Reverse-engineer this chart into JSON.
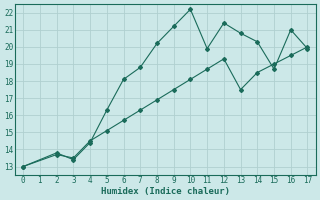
{
  "xlabel": "Humidex (Indice chaleur)",
  "background_color": "#cce8e8",
  "grid_color": "#b0d0d0",
  "line_color": "#1a6b5a",
  "xlim": [
    -0.5,
    17.5
  ],
  "ylim": [
    12.5,
    22.5
  ],
  "xticks": [
    0,
    1,
    2,
    3,
    4,
    5,
    6,
    7,
    8,
    9,
    10,
    11,
    12,
    13,
    14,
    15,
    16,
    17
  ],
  "yticks": [
    13,
    14,
    15,
    16,
    17,
    18,
    19,
    20,
    21,
    22
  ],
  "line1_x": [
    0,
    2,
    3,
    4,
    5,
    6,
    7,
    8,
    9,
    10,
    11,
    12,
    13,
    14,
    15,
    16,
    17
  ],
  "line1_y": [
    13.0,
    13.8,
    13.4,
    14.4,
    16.3,
    18.1,
    18.8,
    20.2,
    21.2,
    22.2,
    19.9,
    21.4,
    20.8,
    20.3,
    18.7,
    21.0,
    19.9
  ],
  "line2_x": [
    0,
    2,
    3,
    4,
    5,
    6,
    7,
    8,
    9,
    10,
    11,
    12,
    13,
    14,
    15,
    16,
    17
  ],
  "line2_y": [
    13.0,
    13.7,
    13.5,
    14.5,
    15.1,
    15.7,
    16.3,
    16.9,
    17.5,
    18.1,
    18.7,
    19.3,
    17.5,
    18.5,
    19.0,
    19.5,
    20.0
  ]
}
